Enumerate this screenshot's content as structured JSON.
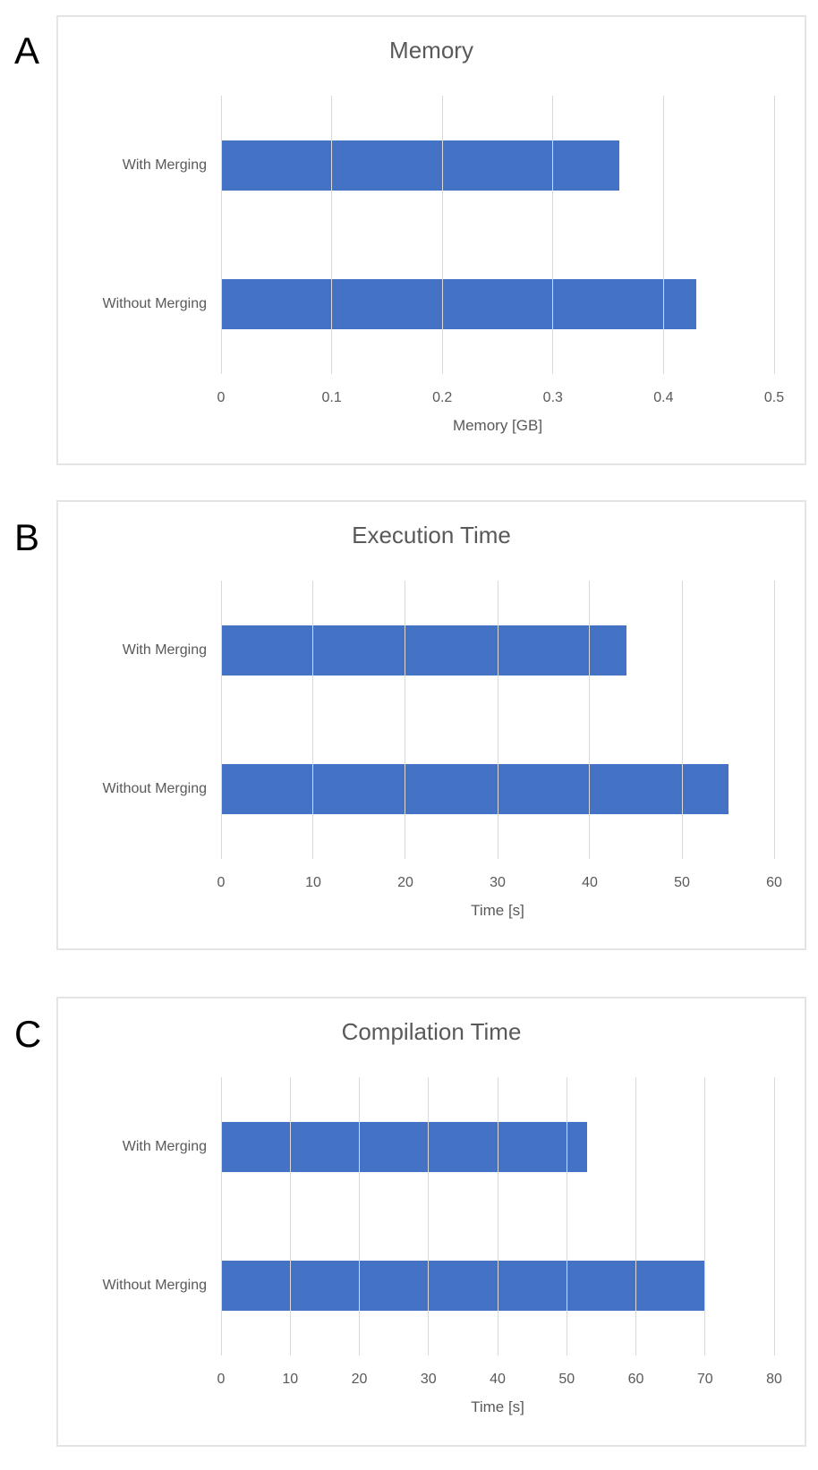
{
  "panels": [
    {
      "letter": "A"
    },
    {
      "letter": "B"
    },
    {
      "letter": "C"
    }
  ],
  "chart_data": [
    {
      "type": "bar",
      "orientation": "horizontal",
      "title": "Memory",
      "categories": [
        "With Merging",
        "Without Merging"
      ],
      "values": [
        0.36,
        0.43
      ],
      "xlabel": "Memory [GB]",
      "xlim": [
        0,
        0.5
      ],
      "xtick_labels": [
        "0",
        "0.1",
        "0.2",
        "0.3",
        "0.4",
        "0.5"
      ],
      "grid": true,
      "legend": false,
      "bar_color": "#4472C4"
    },
    {
      "type": "bar",
      "orientation": "horizontal",
      "title": "Execution Time",
      "categories": [
        "With Merging",
        "Without Merging"
      ],
      "values": [
        44,
        55
      ],
      "xlabel": "Time [s]",
      "xlim": [
        0,
        60
      ],
      "xtick_labels": [
        "0",
        "10",
        "20",
        "30",
        "40",
        "50",
        "60"
      ],
      "grid": true,
      "legend": false,
      "bar_color": "#4472C4"
    },
    {
      "type": "bar",
      "orientation": "horizontal",
      "title": "Compilation Time",
      "categories": [
        "With Merging",
        "Without Merging"
      ],
      "values": [
        53,
        70
      ],
      "xlabel": "Time [s]",
      "xlim": [
        0,
        80
      ],
      "xtick_labels": [
        "0",
        "10",
        "20",
        "30",
        "40",
        "50",
        "60",
        "70",
        "80"
      ],
      "grid": true,
      "legend": false,
      "bar_color": "#4472C4"
    }
  ],
  "colors": {
    "bar": "#4472C4",
    "chart_text": "#595959",
    "gridline": "#D9D9D9",
    "panel_border": "#E4E4E4",
    "panel_letter": "#000000",
    "background": "#FFFFFF"
  }
}
